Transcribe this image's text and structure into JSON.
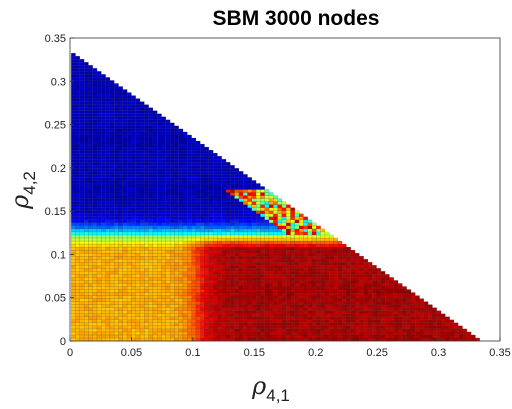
{
  "chart_data": {
    "type": "heatmap",
    "title": "SBM 3000 nodes",
    "xlabel": {
      "symbol": "ρ",
      "subscript": "4,1"
    },
    "ylabel": {
      "symbol": "ρ",
      "subscript": "4,2"
    },
    "xlim": [
      0,
      0.35
    ],
    "ylim": [
      0,
      0.35
    ],
    "x_ticks": [
      "0",
      "0.05",
      "0.1",
      "0.15",
      "0.2",
      "0.25",
      "0.3",
      "0.35"
    ],
    "y_ticks": [
      "0",
      "0.05",
      "0.1",
      "0.15",
      "0.2",
      "0.25",
      "0.3",
      "0.35"
    ],
    "colormap": "jet",
    "grid": false,
    "domain_boundary": "x + y <= 0.333",
    "regions": [
      {
        "region": "y > 0.12",
        "value": "low",
        "color": "#0a1f6e"
      },
      {
        "region": "x < 0.1 and y < 0.12",
        "value": "mid-high",
        "color": "#d9b53a"
      },
      {
        "region": "x > 0.1 and y < 0.16",
        "value": "high",
        "color": "#7a1010"
      }
    ]
  }
}
